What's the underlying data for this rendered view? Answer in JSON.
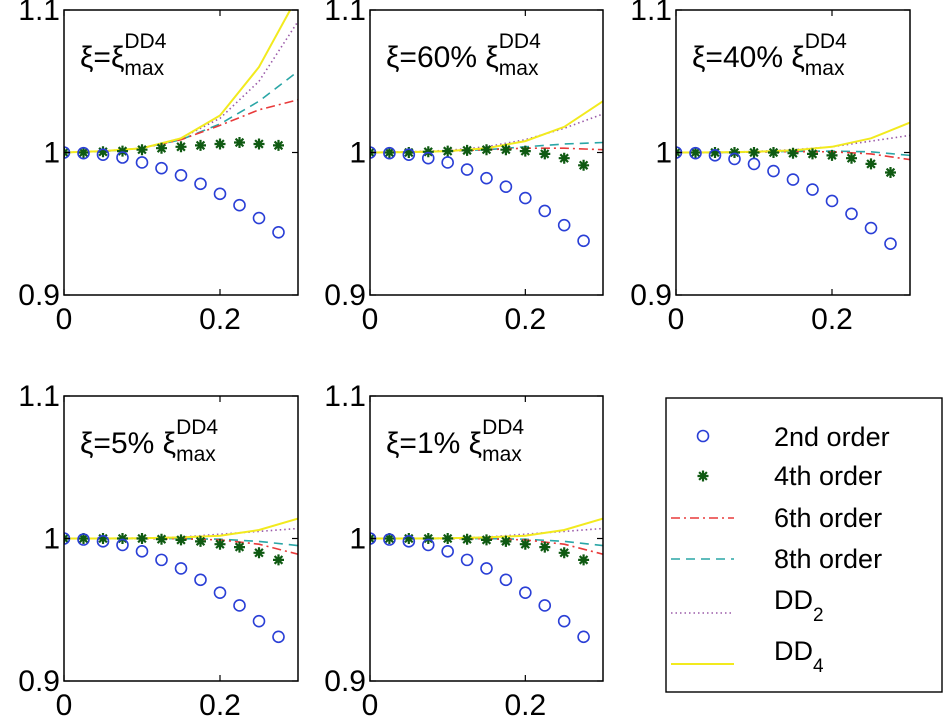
{
  "chart_data": [
    {
      "type": "scatter",
      "panel": "panel-1",
      "annotation": {
        "base": "ξ=ξ",
        "sup": "DD4",
        "sub": "max"
      },
      "ylim": [
        0.9,
        1.1
      ],
      "xlim": [
        0,
        0.3
      ],
      "yticks": [
        "1.1",
        "1",
        "0.9"
      ],
      "xticks": [
        "0",
        "0.2"
      ],
      "series": [
        {
          "key": "2nd",
          "x": [
            0,
            0.025,
            0.05,
            0.075,
            0.1,
            0.125,
            0.15,
            0.175,
            0.2,
            0.225,
            0.25,
            0.275
          ],
          "values": [
            1.0,
            0.9995,
            0.9985,
            0.9965,
            0.993,
            0.989,
            0.984,
            0.978,
            0.971,
            0.963,
            0.954,
            0.944
          ]
        },
        {
          "key": "4th",
          "x": [
            0,
            0.025,
            0.05,
            0.075,
            0.1,
            0.125,
            0.15,
            0.175,
            0.2,
            0.225,
            0.25,
            0.275
          ],
          "values": [
            1.0,
            1.0,
            1.0005,
            1.001,
            1.002,
            1.003,
            1.004,
            1.005,
            1.006,
            1.007,
            1.006,
            1.005
          ]
        },
        {
          "key": "6th",
          "x": [
            0,
            0.05,
            0.1,
            0.15,
            0.2,
            0.25,
            0.3
          ],
          "values": [
            1.0,
            1.0008,
            1.003,
            1.009,
            1.019,
            1.03,
            1.037
          ]
        },
        {
          "key": "8th",
          "x": [
            0,
            0.05,
            0.1,
            0.15,
            0.2,
            0.25,
            0.3
          ],
          "values": [
            1.0,
            1.0008,
            1.003,
            1.009,
            1.02,
            1.036,
            1.057
          ]
        },
        {
          "key": "DD2",
          "x": [
            0,
            0.05,
            0.1,
            0.15,
            0.2,
            0.25,
            0.3
          ],
          "values": [
            1.0,
            1.001,
            1.003,
            1.01,
            1.024,
            1.05,
            1.092
          ]
        },
        {
          "key": "DD4",
          "x": [
            0,
            0.05,
            0.1,
            0.15,
            0.2,
            0.25,
            0.3
          ],
          "values": [
            1.0,
            1.001,
            1.003,
            1.01,
            1.026,
            1.06,
            1.11
          ]
        }
      ]
    },
    {
      "type": "scatter",
      "panel": "panel-2",
      "annotation": {
        "base": "ξ=60% ξ",
        "sup": "DD4",
        "sub": "max"
      },
      "ylim": [
        0.9,
        1.1
      ],
      "xlim": [
        0,
        0.3
      ],
      "yticks": [
        "1.1",
        "1",
        "0.9"
      ],
      "xticks": [
        "0",
        "0.2"
      ],
      "series": [
        {
          "key": "2nd",
          "x": [
            0,
            0.025,
            0.05,
            0.075,
            0.1,
            0.125,
            0.15,
            0.175,
            0.2,
            0.225,
            0.25,
            0.275
          ],
          "values": [
            1.0,
            0.9995,
            0.9985,
            0.996,
            0.993,
            0.988,
            0.982,
            0.976,
            0.968,
            0.959,
            0.949,
            0.938
          ]
        },
        {
          "key": "4th",
          "x": [
            0,
            0.025,
            0.05,
            0.075,
            0.1,
            0.125,
            0.15,
            0.175,
            0.2,
            0.225,
            0.25,
            0.275
          ],
          "values": [
            1.0,
            1.0,
            1.0,
            1.0005,
            1.001,
            1.0015,
            1.002,
            1.002,
            1.001,
            0.999,
            0.996,
            0.991
          ]
        },
        {
          "key": "6th",
          "x": [
            0,
            0.05,
            0.1,
            0.15,
            0.2,
            0.25,
            0.3
          ],
          "values": [
            1.0,
            1.0003,
            1.001,
            1.002,
            1.003,
            1.003,
            1.002
          ]
        },
        {
          "key": "8th",
          "x": [
            0,
            0.05,
            0.1,
            0.15,
            0.2,
            0.25,
            0.3
          ],
          "values": [
            1.0,
            1.0003,
            1.001,
            1.002,
            1.004,
            1.006,
            1.007
          ]
        },
        {
          "key": "DD2",
          "x": [
            0,
            0.05,
            0.1,
            0.15,
            0.2,
            0.25,
            0.3
          ],
          "values": [
            1.0,
            1.0004,
            1.0015,
            1.004,
            1.009,
            1.017,
            1.027
          ]
        },
        {
          "key": "DD4",
          "x": [
            0,
            0.05,
            0.1,
            0.15,
            0.2,
            0.25,
            0.3
          ],
          "values": [
            1.0,
            1.0003,
            1.001,
            1.003,
            1.008,
            1.018,
            1.036
          ]
        }
      ]
    },
    {
      "type": "scatter",
      "panel": "panel-3",
      "annotation": {
        "base": "ξ=40% ξ",
        "sup": "DD4",
        "sub": "max"
      },
      "ylim": [
        0.9,
        1.1
      ],
      "xlim": [
        0,
        0.3
      ],
      "yticks": [
        "1.1",
        "1",
        "0.9"
      ],
      "xticks": [
        "0",
        "0.2"
      ],
      "series": [
        {
          "key": "2nd",
          "x": [
            0,
            0.025,
            0.05,
            0.075,
            0.1,
            0.125,
            0.15,
            0.175,
            0.2,
            0.225,
            0.25,
            0.275
          ],
          "values": [
            1.0,
            0.9995,
            0.998,
            0.9955,
            0.992,
            0.987,
            0.981,
            0.974,
            0.966,
            0.957,
            0.947,
            0.936
          ]
        },
        {
          "key": "4th",
          "x": [
            0,
            0.025,
            0.05,
            0.075,
            0.1,
            0.125,
            0.15,
            0.175,
            0.2,
            0.225,
            0.25,
            0.275
          ],
          "values": [
            1.0,
            1.0,
            1.0,
            1.0,
            1.0,
            1.0,
            0.9995,
            0.999,
            0.998,
            0.996,
            0.992,
            0.986
          ]
        },
        {
          "key": "6th",
          "x": [
            0,
            0.05,
            0.1,
            0.15,
            0.2,
            0.25,
            0.3
          ],
          "values": [
            1.0,
            1.0,
            1.0003,
            1.0006,
            1.0005,
            0.999,
            0.995
          ]
        },
        {
          "key": "8th",
          "x": [
            0,
            0.05,
            0.1,
            0.15,
            0.2,
            0.25,
            0.3
          ],
          "values": [
            1.0,
            1.0,
            1.0003,
            1.0008,
            1.001,
            1.0005,
            0.998
          ]
        },
        {
          "key": "DD2",
          "x": [
            0,
            0.05,
            0.1,
            0.15,
            0.2,
            0.25,
            0.3
          ],
          "values": [
            1.0,
            1.0001,
            1.0007,
            1.002,
            1.004,
            1.008,
            1.012
          ]
        },
        {
          "key": "DD4",
          "x": [
            0,
            0.05,
            0.1,
            0.15,
            0.2,
            0.25,
            0.3
          ],
          "values": [
            1.0,
            1.0001,
            1.0005,
            1.0015,
            1.004,
            1.01,
            1.021
          ]
        }
      ]
    },
    {
      "type": "scatter",
      "panel": "panel-4",
      "annotation": {
        "base": "ξ=5% ξ",
        "sup": "DD4",
        "sub": "max"
      },
      "ylim": [
        0.9,
        1.1
      ],
      "xlim": [
        0,
        0.3
      ],
      "yticks": [
        "1.1",
        "1",
        "0.9"
      ],
      "xticks": [
        "0",
        "0.2"
      ],
      "series": [
        {
          "key": "2nd",
          "x": [
            0,
            0.025,
            0.05,
            0.075,
            0.1,
            0.125,
            0.15,
            0.175,
            0.2,
            0.225,
            0.25,
            0.275
          ],
          "values": [
            1.0,
            0.9993,
            0.998,
            0.9955,
            0.991,
            0.985,
            0.979,
            0.971,
            0.962,
            0.953,
            0.942,
            0.931
          ]
        },
        {
          "key": "4th",
          "x": [
            0,
            0.025,
            0.05,
            0.075,
            0.1,
            0.125,
            0.15,
            0.175,
            0.2,
            0.225,
            0.25,
            0.275
          ],
          "values": [
            1.0,
            1.0,
            1.0,
            1.0,
            1.0,
            0.9995,
            0.999,
            0.998,
            0.996,
            0.994,
            0.99,
            0.985
          ]
        },
        {
          "key": "6th",
          "x": [
            0,
            0.05,
            0.1,
            0.15,
            0.2,
            0.25,
            0.3
          ],
          "values": [
            1.0,
            1.0,
            1.0,
            0.9998,
            0.999,
            0.996,
            0.989
          ]
        },
        {
          "key": "8th",
          "x": [
            0,
            0.05,
            0.1,
            0.15,
            0.2,
            0.25,
            0.3
          ],
          "values": [
            1.0,
            1.0,
            1.0,
            0.9999,
            0.9995,
            0.998,
            0.995
          ]
        },
        {
          "key": "DD2",
          "x": [
            0,
            0.05,
            0.1,
            0.15,
            0.2,
            0.25,
            0.3
          ],
          "values": [
            1.0,
            1.0,
            1.0003,
            1.001,
            1.003,
            1.005,
            1.007
          ]
        },
        {
          "key": "DD4",
          "x": [
            0,
            0.05,
            0.1,
            0.15,
            0.2,
            0.25,
            0.3
          ],
          "values": [
            1.0,
            1.0,
            1.0002,
            1.0008,
            1.002,
            1.006,
            1.014
          ]
        }
      ]
    },
    {
      "type": "scatter",
      "panel": "panel-5",
      "annotation": {
        "base": "ξ=1% ξ",
        "sup": "DD4",
        "sub": "max"
      },
      "ylim": [
        0.9,
        1.1
      ],
      "xlim": [
        0,
        0.3
      ],
      "yticks": [
        "1.1",
        "1",
        "0.9"
      ],
      "xticks": [
        "0",
        "0.2"
      ],
      "series": [
        {
          "key": "2nd",
          "x": [
            0,
            0.025,
            0.05,
            0.075,
            0.1,
            0.125,
            0.15,
            0.175,
            0.2,
            0.225,
            0.25,
            0.275
          ],
          "values": [
            1.0,
            0.9993,
            0.998,
            0.9955,
            0.991,
            0.985,
            0.979,
            0.971,
            0.962,
            0.953,
            0.942,
            0.931
          ]
        },
        {
          "key": "4th",
          "x": [
            0,
            0.025,
            0.05,
            0.075,
            0.1,
            0.125,
            0.15,
            0.175,
            0.2,
            0.225,
            0.25,
            0.275
          ],
          "values": [
            1.0,
            1.0,
            1.0,
            1.0,
            1.0,
            0.9995,
            0.999,
            0.998,
            0.996,
            0.994,
            0.99,
            0.985
          ]
        },
        {
          "key": "6th",
          "x": [
            0,
            0.05,
            0.1,
            0.15,
            0.2,
            0.25,
            0.3
          ],
          "values": [
            1.0,
            1.0,
            1.0,
            0.9998,
            0.999,
            0.996,
            0.989
          ]
        },
        {
          "key": "8th",
          "x": [
            0,
            0.05,
            0.1,
            0.15,
            0.2,
            0.25,
            0.3
          ],
          "values": [
            1.0,
            1.0,
            1.0,
            0.9999,
            0.9995,
            0.998,
            0.995
          ]
        },
        {
          "key": "DD2",
          "x": [
            0,
            0.05,
            0.1,
            0.15,
            0.2,
            0.25,
            0.3
          ],
          "values": [
            1.0,
            1.0,
            1.0003,
            1.001,
            1.003,
            1.005,
            1.007
          ]
        },
        {
          "key": "DD4",
          "x": [
            0,
            0.05,
            0.1,
            0.15,
            0.2,
            0.25,
            0.3
          ],
          "values": [
            1.0,
            1.0,
            1.0002,
            1.0008,
            1.002,
            1.006,
            1.014
          ]
        }
      ]
    }
  ],
  "legend": {
    "placement": "bottom-right",
    "entries": [
      {
        "key": "2nd",
        "label": "2nd order",
        "sub": "",
        "marker": "circle",
        "color": "#2a3fd6"
      },
      {
        "key": "4th",
        "label": "4th order",
        "sub": "",
        "marker": "star",
        "color": "#0f5a12"
      },
      {
        "key": "6th",
        "label": "6th order",
        "sub": "",
        "marker": "dashdot",
        "color": "#e83a3a"
      },
      {
        "key": "8th",
        "label": "8th order",
        "sub": "",
        "marker": "dash",
        "color": "#2aa6a6"
      },
      {
        "key": "DD2",
        "label": "DD",
        "sub": "2",
        "marker": "dot",
        "color": "#9a5aa8"
      },
      {
        "key": "DD4",
        "label": "DD",
        "sub": "4",
        "marker": "solid",
        "color": "#f2ea1e"
      }
    ]
  }
}
